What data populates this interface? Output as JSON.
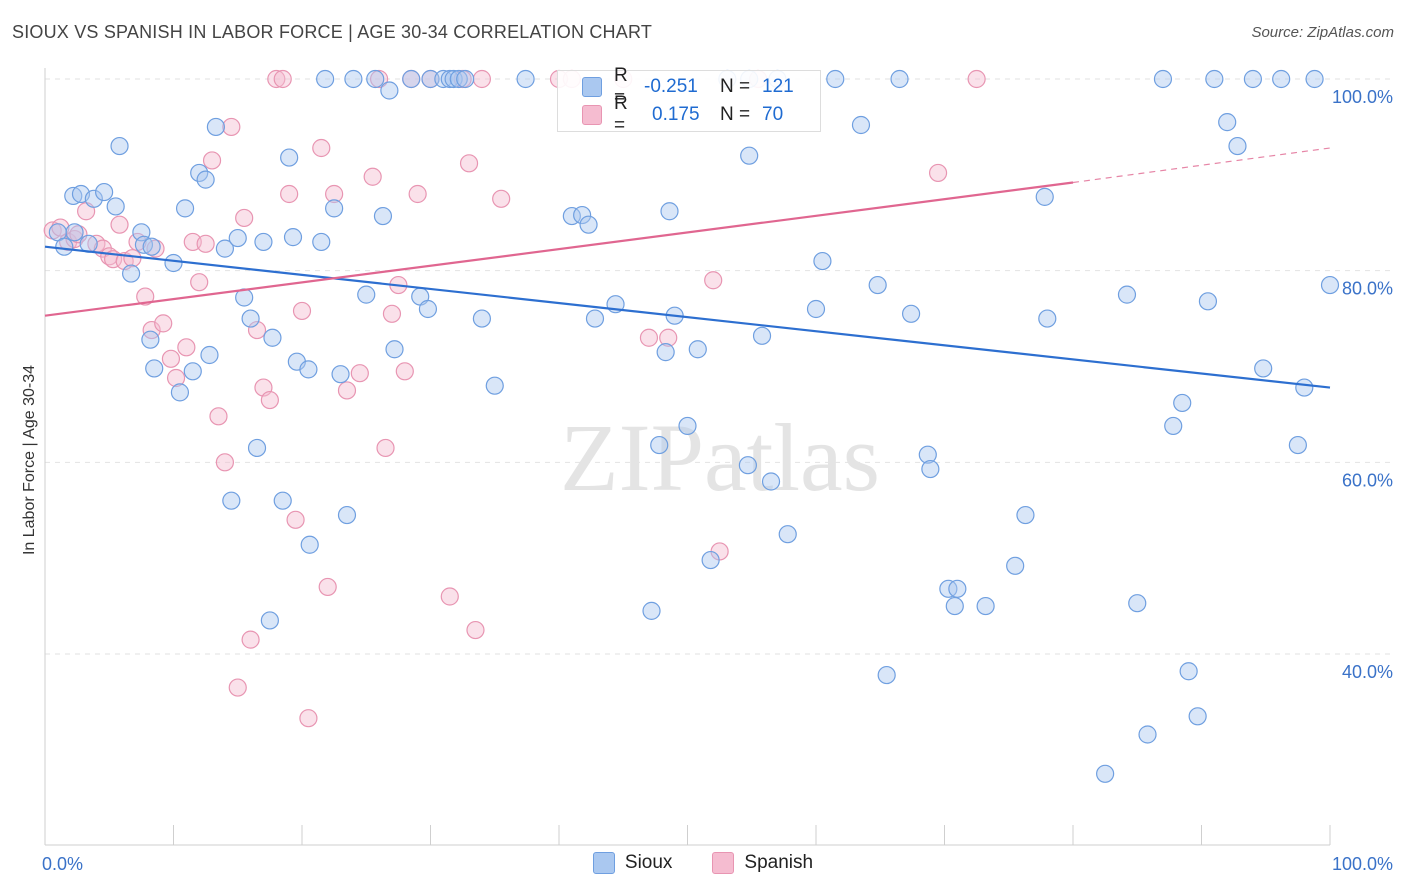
{
  "title": "SIOUX VS SPANISH IN LABOR FORCE | AGE 30-34 CORRELATION CHART",
  "source": "Source: ZipAtlas.com",
  "watermark": "ZIPatlas",
  "legend": {
    "rows": [
      {
        "r_label": "R =",
        "r_value": "-0.251",
        "n_label": "N =",
        "n_value": "121"
      },
      {
        "r_label": "R =",
        "r_value": "0.175",
        "n_label": "N =",
        "n_value": "70"
      }
    ]
  },
  "bottom_legend": [
    "Sioux",
    "Spanish"
  ],
  "colors": {
    "sioux_fill": "#aac8f0",
    "sioux_stroke": "#6f9fe0",
    "sioux_line": "#2d6fd0",
    "spanish_fill": "#f5bcd0",
    "spanish_stroke": "#e895b2",
    "spanish_line": "#e06690",
    "tick_label": "#3a72c8",
    "grid": "#e2e2e2"
  },
  "chart_data": {
    "type": "scatter",
    "title": "SIOUX VS SPANISH IN LABOR FORCE | AGE 30-34 CORRELATION CHART",
    "xlabel": "",
    "ylabel": "In Labor Force | Age 30-34",
    "xlim": [
      0,
      100
    ],
    "ylim": [
      20,
      100
    ],
    "x_tick_labels": [
      "0.0%",
      "100.0%"
    ],
    "y_ticks": [
      40,
      60,
      80,
      100
    ],
    "y_tick_labels": [
      "40.0%",
      "60.0%",
      "80.0%",
      "100.0%"
    ],
    "grid": true,
    "series": [
      {
        "name": "Sioux",
        "r": -0.251,
        "n": 121,
        "trend": {
          "x": [
            0,
            100
          ],
          "y": [
            82.5,
            67.8
          ]
        },
        "points": [
          [
            1.0,
            84.0
          ],
          [
            1.5,
            82.5
          ],
          [
            2.3,
            84.0
          ],
          [
            2.2,
            87.8
          ],
          [
            2.8,
            88.0
          ],
          [
            3.8,
            87.5
          ],
          [
            4.6,
            88.2
          ],
          [
            5.5,
            86.7
          ],
          [
            5.8,
            93.0
          ],
          [
            3.4,
            82.8
          ],
          [
            6.7,
            79.7
          ],
          [
            7.5,
            84.0
          ],
          [
            7.7,
            82.7
          ],
          [
            8.3,
            82.5
          ],
          [
            8.2,
            72.8
          ],
          [
            8.5,
            69.8
          ],
          [
            10.0,
            80.8
          ],
          [
            10.5,
            67.3
          ],
          [
            10.9,
            86.5
          ],
          [
            11.5,
            69.5
          ],
          [
            12.0,
            90.2
          ],
          [
            12.5,
            89.5
          ],
          [
            12.8,
            71.2
          ],
          [
            13.3,
            95.0
          ],
          [
            14.0,
            82.3
          ],
          [
            14.5,
            56.0
          ],
          [
            15.0,
            83.4
          ],
          [
            15.5,
            77.2
          ],
          [
            16.0,
            75.0
          ],
          [
            16.5,
            61.5
          ],
          [
            17.0,
            83.0
          ],
          [
            17.5,
            43.5
          ],
          [
            17.7,
            73.0
          ],
          [
            18.5,
            56.0
          ],
          [
            19.0,
            91.8
          ],
          [
            19.3,
            83.5
          ],
          [
            19.6,
            70.5
          ],
          [
            20.5,
            69.7
          ],
          [
            20.6,
            51.4
          ],
          [
            21.5,
            83.0
          ],
          [
            21.8,
            100.0
          ],
          [
            22.5,
            86.5
          ],
          [
            23.0,
            69.2
          ],
          [
            23.5,
            54.5
          ],
          [
            24.0,
            100.0
          ],
          [
            25.0,
            77.5
          ],
          [
            25.7,
            100.0
          ],
          [
            26.3,
            85.7
          ],
          [
            26.8,
            98.8
          ],
          [
            27.2,
            71.8
          ],
          [
            28.5,
            100.0
          ],
          [
            29.2,
            77.3
          ],
          [
            29.8,
            76.0
          ],
          [
            30.0,
            100.0
          ],
          [
            31.0,
            100.0
          ],
          [
            31.5,
            100.0
          ],
          [
            31.8,
            100.0
          ],
          [
            32.2,
            100.0
          ],
          [
            32.7,
            100.0
          ],
          [
            34.0,
            75.0
          ],
          [
            35.0,
            68.0
          ],
          [
            37.4,
            100.0
          ],
          [
            41.0,
            85.7
          ],
          [
            41.8,
            85.8
          ],
          [
            42.3,
            84.8
          ],
          [
            42.8,
            75.0
          ],
          [
            44.4,
            76.5
          ],
          [
            47.2,
            44.5
          ],
          [
            47.8,
            61.8
          ],
          [
            48.3,
            71.5
          ],
          [
            48.6,
            86.2
          ],
          [
            49.0,
            75.3
          ],
          [
            50.0,
            63.8
          ],
          [
            50.8,
            71.8
          ],
          [
            51.8,
            49.8
          ],
          [
            53.1,
            100.0
          ],
          [
            54.7,
            59.7
          ],
          [
            54.8,
            92.0
          ],
          [
            55.8,
            73.2
          ],
          [
            56.5,
            58.0
          ],
          [
            57.8,
            52.5
          ],
          [
            60.0,
            76.0
          ],
          [
            60.5,
            81.0
          ],
          [
            61.5,
            100.0
          ],
          [
            63.5,
            95.2
          ],
          [
            64.8,
            78.5
          ],
          [
            65.5,
            37.8
          ],
          [
            66.5,
            100.0
          ],
          [
            67.4,
            75.5
          ],
          [
            68.7,
            60.8
          ],
          [
            68.9,
            59.3
          ],
          [
            70.3,
            46.8
          ],
          [
            70.8,
            45.0
          ],
          [
            71.0,
            46.8
          ],
          [
            73.2,
            45.0
          ],
          [
            75.5,
            49.2
          ],
          [
            76.3,
            54.5
          ],
          [
            77.8,
            87.7
          ],
          [
            78.0,
            75.0
          ],
          [
            84.2,
            77.5
          ],
          [
            85.0,
            45.3
          ],
          [
            85.8,
            31.6
          ],
          [
            87.8,
            63.8
          ],
          [
            88.5,
            66.2
          ],
          [
            89.0,
            38.2
          ],
          [
            89.7,
            33.5
          ],
          [
            90.5,
            76.8
          ],
          [
            92.0,
            95.5
          ],
          [
            92.8,
            93.0
          ],
          [
            94.0,
            100.0
          ],
          [
            94.8,
            69.8
          ],
          [
            96.2,
            100.0
          ],
          [
            97.5,
            61.8
          ],
          [
            98.0,
            67.8
          ],
          [
            98.8,
            100.0
          ],
          [
            100.0,
            78.5
          ],
          [
            82.5,
            27.5
          ],
          [
            91.0,
            100.0
          ],
          [
            87.0,
            100.0
          ],
          [
            57.0,
            100.0
          ],
          [
            54.8,
            100.0
          ]
        ]
      },
      {
        "name": "Spanish",
        "r": 0.175,
        "n": 70,
        "trend": {
          "x": [
            0,
            80
          ],
          "y": [
            75.3,
            89.2
          ]
        },
        "trend_dashed": {
          "x": [
            80,
            100
          ],
          "y": [
            89.2,
            92.8
          ]
        },
        "points": [
          [
            0.6,
            84.2
          ],
          [
            1.2,
            84.5
          ],
          [
            1.8,
            83.0
          ],
          [
            2.3,
            83.3
          ],
          [
            2.6,
            83.8
          ],
          [
            3.2,
            86.2
          ],
          [
            4.0,
            82.8
          ],
          [
            4.5,
            82.3
          ],
          [
            5.0,
            81.5
          ],
          [
            5.3,
            81.2
          ],
          [
            5.8,
            84.8
          ],
          [
            6.2,
            81.0
          ],
          [
            6.8,
            81.3
          ],
          [
            7.2,
            83.0
          ],
          [
            7.8,
            77.3
          ],
          [
            8.3,
            73.8
          ],
          [
            8.6,
            82.3
          ],
          [
            9.2,
            74.5
          ],
          [
            9.8,
            70.8
          ],
          [
            10.2,
            68.8
          ],
          [
            11.0,
            72.0
          ],
          [
            11.5,
            83.0
          ],
          [
            12.0,
            78.8
          ],
          [
            12.5,
            82.8
          ],
          [
            13.0,
            91.5
          ],
          [
            13.5,
            64.8
          ],
          [
            14.0,
            60.0
          ],
          [
            14.5,
            95.0
          ],
          [
            15.0,
            36.5
          ],
          [
            15.5,
            85.5
          ],
          [
            16.0,
            41.5
          ],
          [
            16.5,
            73.8
          ],
          [
            17.0,
            67.8
          ],
          [
            17.5,
            66.5
          ],
          [
            18.0,
            100.0
          ],
          [
            18.5,
            100.0
          ],
          [
            19.0,
            88.0
          ],
          [
            19.5,
            54.0
          ],
          [
            20.0,
            75.8
          ],
          [
            20.5,
            33.3
          ],
          [
            21.5,
            92.8
          ],
          [
            22.0,
            47.0
          ],
          [
            22.5,
            88.0
          ],
          [
            23.5,
            67.5
          ],
          [
            24.5,
            69.3
          ],
          [
            25.5,
            89.8
          ],
          [
            26.0,
            100.0
          ],
          [
            26.5,
            61.5
          ],
          [
            27.0,
            75.5
          ],
          [
            27.5,
            78.5
          ],
          [
            28.0,
            69.5
          ],
          [
            28.5,
            100.0
          ],
          [
            29.0,
            88.0
          ],
          [
            30.0,
            100.0
          ],
          [
            31.5,
            46.0
          ],
          [
            32.5,
            100.0
          ],
          [
            33.0,
            91.2
          ],
          [
            33.5,
            42.5
          ],
          [
            34.0,
            100.0
          ],
          [
            35.5,
            87.5
          ],
          [
            40.0,
            100.0
          ],
          [
            41.0,
            100.0
          ],
          [
            45.0,
            100.0
          ],
          [
            47.0,
            73.0
          ],
          [
            48.5,
            73.0
          ],
          [
            52.0,
            79.0
          ],
          [
            52.5,
            50.7
          ],
          [
            55.5,
            100.0
          ],
          [
            69.5,
            90.2
          ],
          [
            72.5,
            100.0
          ]
        ]
      }
    ]
  }
}
